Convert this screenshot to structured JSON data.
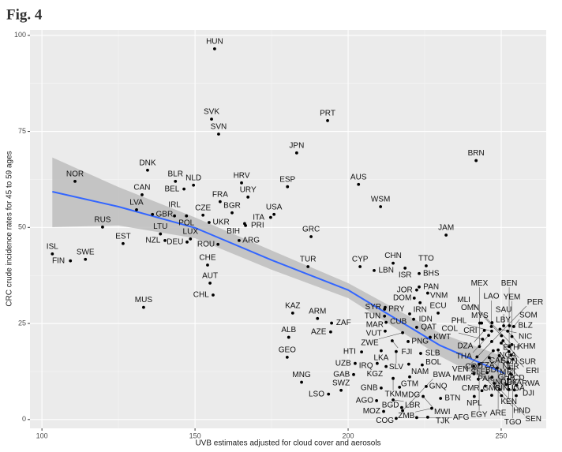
{
  "chart_data": {
    "type": "scatter",
    "title": "Fig. 4",
    "x_label": "UVB estimates adjusted for cloud cover and aerosols",
    "y_label": "CRC crude incidence rates for 45 to 59 ages",
    "xlim": [
      96.1,
      264.7
    ],
    "ylim": [
      -2.3,
      101.4
    ],
    "xticks": [
      100,
      150,
      200,
      250
    ],
    "yticks": [
      0,
      25,
      50,
      75,
      100
    ],
    "grid": true,
    "color": "#000000",
    "labels": [
      "HUN",
      "SVK",
      "SVN",
      "PRT",
      "JPN",
      "BRN",
      "DNK",
      "AUS",
      "ESP",
      "HRV",
      "NOR",
      "BLR",
      "NLD",
      "CAN",
      "BEL",
      "URY",
      "LVA",
      "FRA",
      "WSM",
      "CZE",
      "POL",
      "BGR",
      "USA",
      "UKR",
      "ITA",
      "PRI",
      "GBR",
      "IRL",
      "RUS",
      "BIH",
      "GRC",
      "LUX",
      "JAM",
      "LTU",
      "NZL",
      "ARG",
      "EST",
      "DEU",
      "ROU",
      "ISL",
      "SWE",
      "FIN",
      "CHE",
      "CYP",
      "CHN",
      "ISR",
      "TTO",
      "TUR",
      "LBN",
      "BHS",
      "AUT",
      "CHL",
      "MUS",
      "KAZ",
      "ARM",
      "ZAF",
      "AZE",
      "ALB",
      "GEO",
      "MNG",
      "SWZ",
      "LSO",
      "JOR",
      "PAN",
      "VNM",
      "DOM",
      "IRN",
      "SYR",
      "PRY",
      "CUB",
      "ECU",
      "TUN",
      "IDN",
      "MAR",
      "QAT",
      "VUT",
      "ZWE",
      "FJI",
      "PNG",
      "KWT",
      "HTI",
      "LKA",
      "SLV",
      "SLB",
      "UZB",
      "IRQ",
      "KGZ",
      "NAM",
      "BOL",
      "GAB",
      "TKM",
      "GTM",
      "GNB",
      "MDG",
      "GNQ",
      "AGO",
      "LBR",
      "MWI",
      "BTN",
      "MOZ",
      "BGD",
      "ZMB",
      "COG",
      "BWA",
      "AFG",
      "TJK",
      "NPL",
      "CMR",
      "MYS",
      "LBY",
      "SAU",
      "BLZ",
      "CRI",
      "LAO",
      "NIC",
      "SOM",
      "DZA",
      "KHM",
      "PHL",
      "THA",
      "YEM",
      "COL",
      "VEN",
      "SUR",
      "OMN",
      "ERI",
      "BEN",
      "MEX",
      "ARE",
      "MLI",
      "MMR",
      "KEN",
      "PER",
      "RWA",
      "ETH",
      "TGO",
      "DJI",
      "NGA",
      "EGY",
      "HND",
      "CAF",
      "SDN",
      "COD",
      "TZA",
      "NER",
      "SLE",
      "BDI",
      "MRT",
      "PAK",
      "SEN",
      "GHA",
      "IND",
      "GUY",
      "BFA",
      "GMB",
      "GIN",
      "UGA",
      "TCD"
    ],
    "x": [
      156.4,
      155.4,
      157.7,
      193.3,
      183.2,
      241.8,
      134.5,
      203.4,
      180.2,
      165.2,
      110.8,
      143.6,
      149.5,
      132.7,
      146.4,
      167.3,
      130.9,
      158.2,
      210.6,
      152.6,
      147.2,
      162.1,
      175.8,
      154.6,
      174.7,
      166.5,
      136.1,
      143.3,
      119.8,
      166.2,
      187.9,
      148.5,
      232.0,
      138.7,
      140.2,
      164.4,
      126.5,
      147.4,
      157.5,
      103.4,
      114.2,
      109.3,
      154.1,
      203.9,
      214.7,
      218.6,
      225.5,
      186.9,
      208.5,
      223.2,
      154.9,
      155.9,
      133.2,
      181.9,
      190.0,
      194.6,
      194.3,
      180.6,
      180.1,
      184.8,
      197.7,
      193.6,
      222.4,
      223.2,
      226.0,
      221.6,
      223.5,
      212.1,
      211.9,
      220.1,
      229.4,
      211.9,
      221.4,
      212.4,
      222.4,
      212.1,
      217.8,
      214.4,
      219.6,
      226.8,
      204.4,
      210.8,
      215.7,
      223.7,
      202.3,
      209.5,
      212.4,
      219.8,
      224.2,
      201.8,
      214.7,
      220.1,
      210.8,
      216.8,
      225.5,
      209.3,
      214.7,
      224.5,
      230.2,
      211.6,
      217.5,
      227.3,
      215.7,
      217.8,
      222.4,
      226.0,
      241.2,
      243.7,
      243.0,
      247.0,
      250.8,
      252.7,
      243.6,
      246.8,
      249.6,
      254.1,
      244.5,
      252.1,
      246.9,
      245.9,
      253.5,
      243.9,
      246.9,
      250.6,
      250.1,
      250.0,
      252.6,
      242.9,
      249.0,
      253.5,
      247.4,
      252.5,
      242.1,
      249.4,
      253.2,
      253.8,
      246.1,
      252.1,
      242.8,
      241.0,
      248.7,
      252.6,
      241.1,
      245.4,
      253.1,
      242.5,
      247.0,
      252.3,
      244.8,
      247.7,
      251.7,
      249.5,
      252.5,
      254.3,
      246.9,
      250.1,
      254.9,
      255.0
    ],
    "values": [
      96.5,
      78.2,
      74.3,
      77.8,
      69.4,
      67.4,
      64.9,
      61.2,
      60.6,
      61.6,
      62.0,
      62.0,
      61.0,
      58.5,
      60.0,
      57.9,
      54.6,
      56.7,
      55.4,
      53.2,
      53.0,
      53.8,
      53.4,
      51.3,
      52.6,
      50.5,
      53.4,
      53.0,
      50.1,
      51.0,
      47.6,
      47.0,
      48.0,
      48.3,
      46.6,
      46.6,
      45.8,
      46.2,
      45.6,
      43.1,
      41.7,
      41.3,
      40.2,
      39.8,
      40.7,
      39.4,
      40.0,
      39.8,
      38.8,
      38.0,
      35.5,
      32.4,
      29.2,
      27.7,
      26.3,
      25.1,
      22.8,
      21.4,
      16.2,
      9.7,
      7.6,
      6.6,
      33.7,
      34.5,
      32.9,
      31.6,
      30.4,
      29.2,
      28.7,
      27.5,
      27.7,
      26.9,
      26.1,
      25.3,
      24.0,
      23.0,
      22.6,
      20.5,
      20.3,
      21.4,
      17.6,
      17.9,
      17.7,
      17.2,
      14.6,
      14.6,
      13.8,
      14.4,
      14.2,
      11.7,
      10.7,
      11.1,
      8.2,
      8.4,
      8.6,
      4.9,
      5.1,
      6.0,
      5.5,
      2.1,
      3.1,
      2.9,
      0.3,
      2.3,
      0.5,
      0.6,
      6.0,
      7.5,
      25.1,
      25.2,
      24.4,
      24.4,
      25.1,
      24.2,
      23.5,
      24.2,
      23.2,
      23.0,
      23.0,
      21.9,
      21.6,
      20.9,
      20.3,
      20.5,
      21.8,
      19.9,
      19.0,
      19.0,
      18.1,
      19.5,
      17.9,
      17.7,
      16.3,
      16.6,
      16.8,
      15.7,
      16.1,
      14.9,
      14.4,
      13.9,
      13.4,
      13.3,
      11.9,
      12.2,
      11.9,
      10.5,
      11.0,
      10.5,
      8.7,
      9.4,
      9.1,
      7.8,
      7.8,
      7.7,
      6.3,
      6.2,
      6.2,
      8.9
    ],
    "fit": {
      "color": "#3366ff",
      "band_color": "#bdbdbd",
      "x": [
        103.4,
        125,
        150,
        175,
        200,
        230,
        251.3
      ],
      "values": [
        59.3,
        55.4,
        49.9,
        41.5,
        33.7,
        19.3,
        11.9
      ],
      "lower": [
        50.1,
        50.5,
        47.2,
        39.0,
        31.6,
        16.5,
        7.6
      ],
      "upper": [
        68.2,
        60.5,
        52.6,
        44.0,
        35.5,
        22.5,
        16.2
      ]
    }
  }
}
